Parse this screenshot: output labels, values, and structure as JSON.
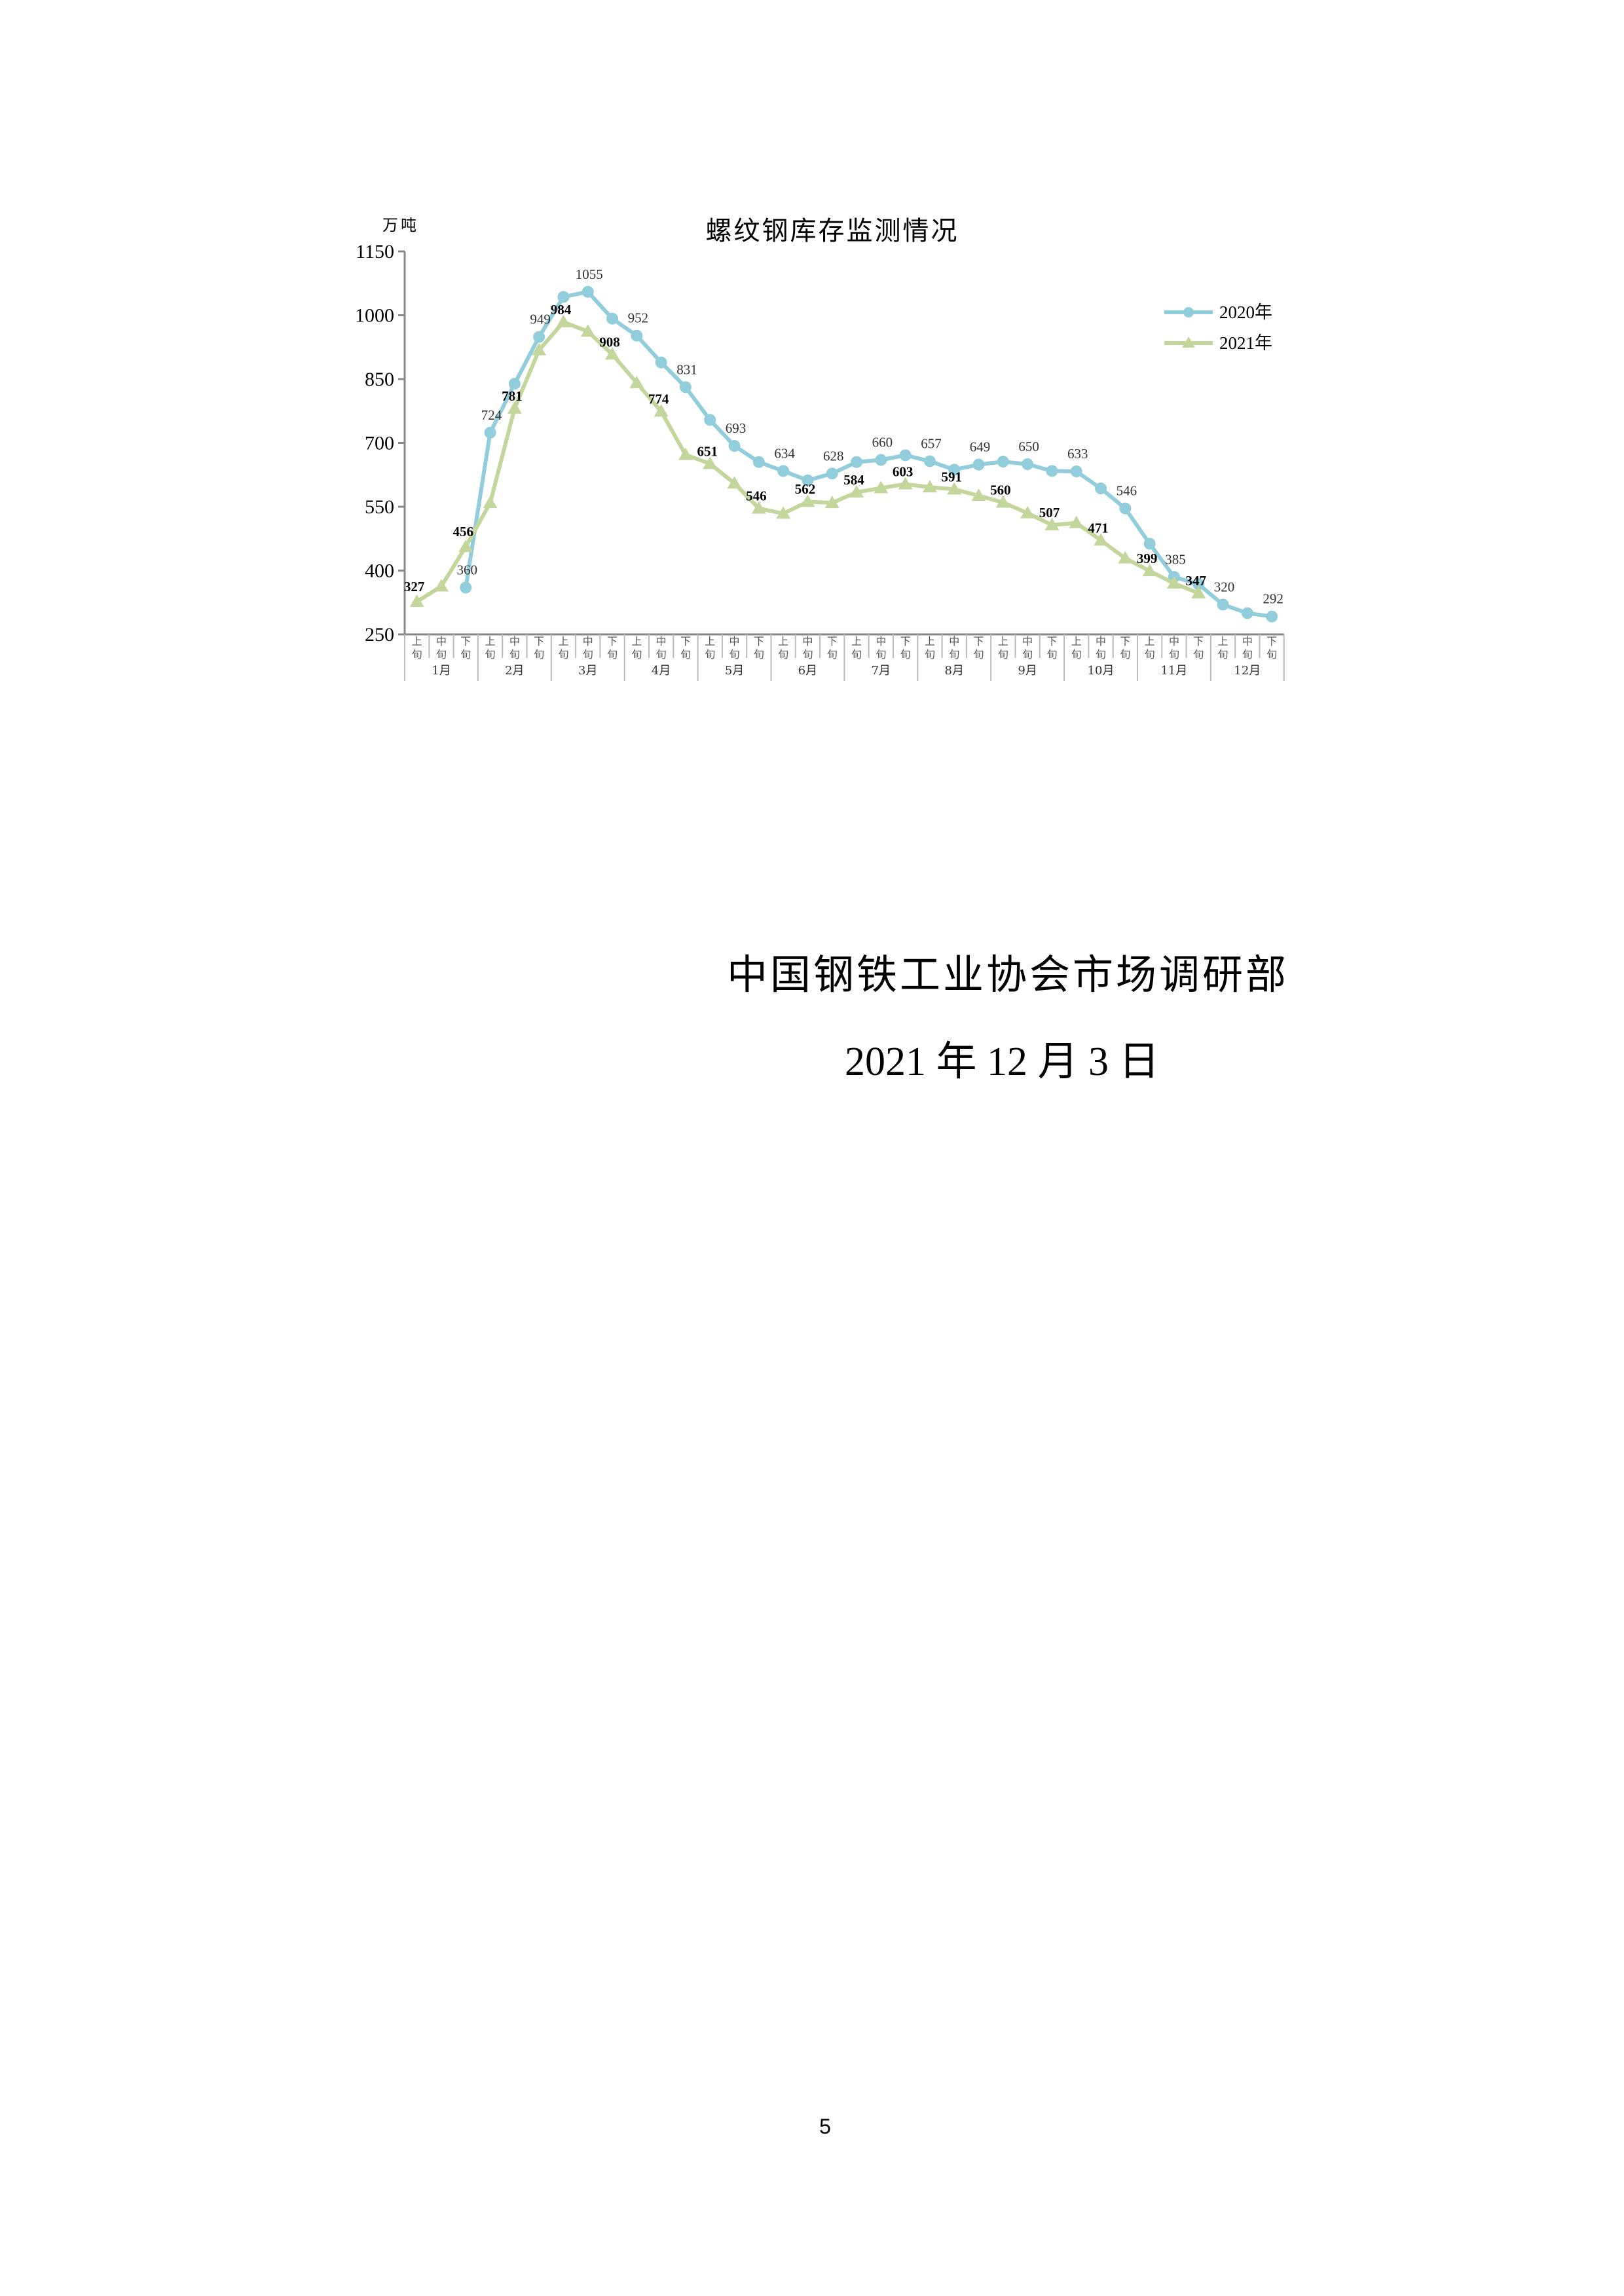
{
  "chart_data": {
    "type": "line",
    "title": "螺纹钢库存监测情况",
    "ylabel": "万吨",
    "ylim": [
      250,
      1150
    ],
    "yticks": [
      250,
      400,
      550,
      700,
      850,
      1000,
      1150
    ],
    "grid": false,
    "legend_position": "top-right",
    "months": [
      "1月",
      "2月",
      "3月",
      "4月",
      "5月",
      "6月",
      "7月",
      "8月",
      "9月",
      "10月",
      "11月",
      "12月"
    ],
    "periods": [
      "上旬",
      "中旬",
      "下旬"
    ],
    "series": [
      {
        "name": "2020年",
        "color": "#92CDDC",
        "marker": "circle",
        "values": [
          null,
          null,
          360,
          724,
          839,
          949,
          1043,
          1055,
          992,
          952,
          889,
          831,
          754,
          693,
          655,
          634,
          612,
          628,
          655,
          660,
          671,
          657,
          637,
          649,
          656,
          650,
          634,
          633,
          593,
          546,
          463,
          385,
          368,
          320,
          300,
          292
        ],
        "labels": [
          null,
          null,
          "360",
          "724",
          null,
          "949",
          null,
          "1055",
          null,
          "952",
          null,
          "831",
          null,
          "693",
          null,
          "634",
          null,
          "628",
          null,
          "660",
          null,
          "657",
          null,
          "649",
          null,
          "650",
          null,
          "633",
          null,
          "546",
          null,
          "385",
          null,
          "320",
          null,
          "292"
        ]
      },
      {
        "name": "2021年",
        "color": "#C3D69B",
        "marker": "triangle",
        "values": [
          327,
          363,
          456,
          559,
          781,
          918,
          984,
          962,
          908,
          841,
          774,
          672,
          651,
          605,
          546,
          534,
          562,
          559,
          584,
          594,
          603,
          596,
          591,
          576,
          560,
          535,
          507,
          512,
          471,
          429,
          399,
          370,
          347,
          null,
          null,
          null
        ],
        "labels": [
          "327",
          null,
          "456",
          null,
          "781",
          null,
          "984",
          null,
          "908",
          null,
          "774",
          null,
          "651",
          null,
          "546",
          null,
          "562",
          null,
          "584",
          null,
          "603",
          null,
          "591",
          null,
          "560",
          null,
          "507",
          null,
          "471",
          null,
          "399",
          null,
          "347",
          null,
          null,
          null
        ]
      }
    ]
  },
  "footer": {
    "organization": "中国钢铁工业协会市场调研部",
    "date": "2021 年 12 月 3 日",
    "page_number": "5"
  }
}
